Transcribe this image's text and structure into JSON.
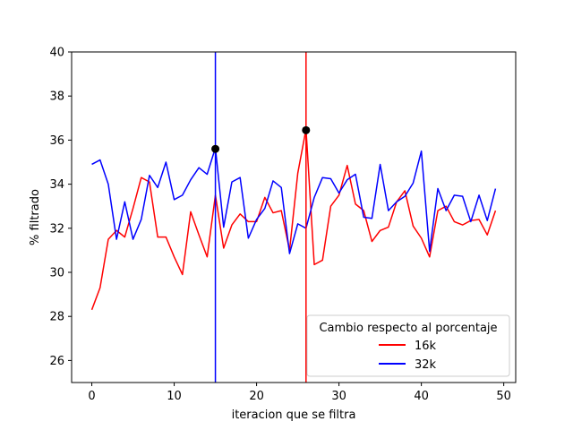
{
  "chart_data": {
    "type": "line",
    "title": "",
    "xlabel": "iteracion que se filtra",
    "ylabel": "% filtrado",
    "xlim": [
      -2.45,
      51.45
    ],
    "ylim": [
      25,
      40
    ],
    "xticks": [
      0,
      10,
      20,
      30,
      40,
      50
    ],
    "yticks": [
      26,
      28,
      30,
      32,
      34,
      36,
      38,
      40
    ],
    "grid": false,
    "legend": {
      "title": "Cambio respecto al porcentaje",
      "placement": "lower-right"
    },
    "series": [
      {
        "name": "16k",
        "color": "#ff0000",
        "x": [
          0,
          1,
          2,
          3,
          4,
          5,
          6,
          7,
          8,
          9,
          10,
          11,
          12,
          13,
          14,
          15,
          16,
          17,
          18,
          19,
          20,
          21,
          22,
          23,
          24,
          25,
          26,
          27,
          28,
          29,
          30,
          31,
          32,
          33,
          34,
          35,
          36,
          37,
          38,
          39,
          40,
          41,
          42,
          43,
          44,
          45,
          46,
          47,
          48,
          49
        ],
        "values": [
          28.3,
          29.3,
          31.5,
          31.9,
          31.6,
          32.9,
          34.3,
          34.1,
          31.6,
          31.6,
          30.7,
          29.9,
          32.75,
          31.7,
          30.7,
          33.5,
          31.1,
          32.15,
          32.65,
          32.3,
          32.3,
          33.4,
          32.7,
          32.8,
          31.0,
          34.5,
          36.5,
          30.35,
          30.55,
          33.0,
          33.5,
          34.85,
          33.1,
          32.8,
          31.4,
          31.9,
          32.05,
          33.2,
          33.7,
          32.1,
          31.55,
          30.7,
          32.8,
          33.0,
          32.3,
          32.15,
          32.35,
          32.4,
          31.7,
          32.8
        ]
      },
      {
        "name": "32k",
        "color": "#0000ff",
        "x": [
          0,
          1,
          2,
          3,
          4,
          5,
          6,
          7,
          8,
          9,
          10,
          11,
          12,
          13,
          14,
          15,
          16,
          17,
          18,
          19,
          20,
          21,
          22,
          23,
          24,
          25,
          26,
          27,
          28,
          29,
          30,
          31,
          32,
          33,
          34,
          35,
          36,
          37,
          38,
          39,
          40,
          41,
          42,
          43,
          44,
          45,
          46,
          47,
          48,
          49
        ],
        "values": [
          34.9,
          35.1,
          34.0,
          31.5,
          33.2,
          31.5,
          32.4,
          34.4,
          33.85,
          35.0,
          33.3,
          33.5,
          34.2,
          34.75,
          34.45,
          35.65,
          32.05,
          34.1,
          34.3,
          31.55,
          32.4,
          32.9,
          34.15,
          33.85,
          30.85,
          32.2,
          32.0,
          33.4,
          34.3,
          34.25,
          33.6,
          34.2,
          34.45,
          32.5,
          32.45,
          34.9,
          32.8,
          33.2,
          33.45,
          34.05,
          35.5,
          30.95,
          33.8,
          32.8,
          33.5,
          33.45,
          32.3,
          33.5,
          32.35,
          33.8
        ]
      }
    ],
    "vertical_lines": [
      {
        "x": 15,
        "color": "#0000ff"
      },
      {
        "x": 26,
        "color": "#ff0000"
      }
    ],
    "markers": [
      {
        "x": 15,
        "y": 35.6,
        "color": "#000000"
      },
      {
        "x": 26,
        "y": 36.45,
        "color": "#000000"
      }
    ]
  }
}
